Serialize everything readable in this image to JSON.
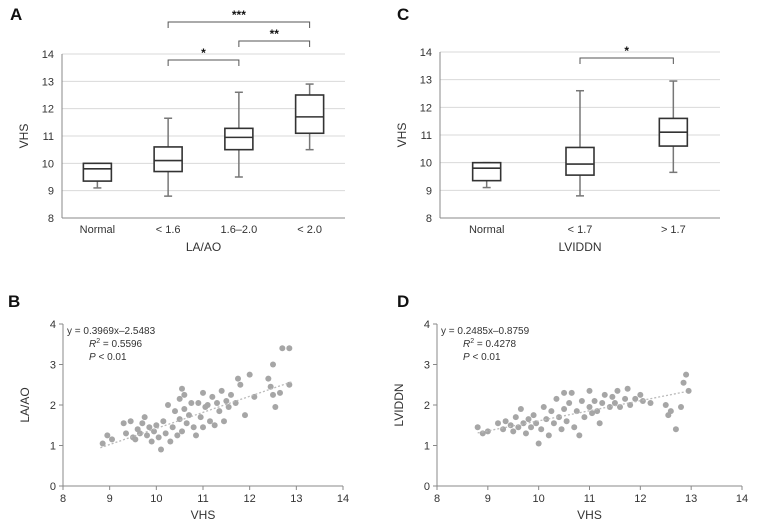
{
  "chart_data": [
    {
      "panel": "A",
      "type": "box",
      "ylabel": "VHS",
      "xlabel": "LA/AO",
      "ylim": [
        8,
        14
      ],
      "yticks": [
        8,
        9,
        10,
        11,
        12,
        13,
        14
      ],
      "categories": [
        "Normal",
        "< 1.6",
        "1.6–2.0",
        "< 2.0"
      ],
      "boxes": [
        {
          "min": 9.1,
          "q1": 9.35,
          "median": 9.8,
          "q3": 10.0,
          "max": 10.0
        },
        {
          "min": 8.8,
          "q1": 9.7,
          "median": 10.1,
          "q3": 10.6,
          "max": 11.65
        },
        {
          "min": 9.5,
          "q1": 10.5,
          "median": 10.95,
          "q3": 11.28,
          "max": 12.6
        },
        {
          "min": 10.5,
          "q1": 11.1,
          "median": 11.7,
          "q3": 12.5,
          "max": 12.9
        }
      ],
      "significance": [
        {
          "from": 1,
          "to": 2,
          "label": "*",
          "level": 1
        },
        {
          "from": 2,
          "to": 3,
          "label": "**",
          "level": 2
        },
        {
          "from": 1,
          "to": 3,
          "label": "***",
          "level": 3
        }
      ]
    },
    {
      "panel": "C",
      "type": "box",
      "ylabel": "VHS",
      "xlabel": "LVIDDN",
      "ylim": [
        8,
        14
      ],
      "yticks": [
        8,
        9,
        10,
        11,
        12,
        13,
        14
      ],
      "categories": [
        "Normal",
        "< 1.7",
        "> 1.7"
      ],
      "boxes": [
        {
          "min": 9.1,
          "q1": 9.35,
          "median": 9.8,
          "q3": 10.0,
          "max": 10.0
        },
        {
          "min": 8.8,
          "q1": 9.55,
          "median": 9.95,
          "q3": 10.55,
          "max": 12.6
        },
        {
          "min": 9.65,
          "q1": 10.6,
          "median": 11.1,
          "q3": 11.6,
          "max": 12.95
        }
      ],
      "significance": [
        {
          "from": 1,
          "to": 2,
          "label": "*",
          "level": 1
        }
      ]
    },
    {
      "panel": "B",
      "type": "scatter",
      "xlabel": "VHS",
      "ylabel": "LA/AO",
      "xlim": [
        8,
        14
      ],
      "ylim": [
        0,
        4
      ],
      "xticks": [
        8,
        9,
        10,
        11,
        12,
        13,
        14
      ],
      "yticks": [
        0,
        1,
        2,
        3,
        4
      ],
      "equation": "y = 0.3969x–2.5483",
      "r2_value": "= 0.5596",
      "p_value": "< 0.01",
      "trend": {
        "slope": 0.3969,
        "intercept": -2.5483,
        "x_from": 8.8,
        "x_to": 12.9
      },
      "points": [
        [
          8.85,
          1.05
        ],
        [
          8.95,
          1.25
        ],
        [
          9.05,
          1.15
        ],
        [
          9.3,
          1.55
        ],
        [
          9.35,
          1.3
        ],
        [
          9.45,
          1.6
        ],
        [
          9.5,
          1.2
        ],
        [
          9.55,
          1.15
        ],
        [
          9.6,
          1.4
        ],
        [
          9.65,
          1.3
        ],
        [
          9.7,
          1.55
        ],
        [
          9.75,
          1.7
        ],
        [
          9.8,
          1.25
        ],
        [
          9.85,
          1.45
        ],
        [
          9.9,
          1.1
        ],
        [
          9.95,
          1.35
        ],
        [
          10.0,
          1.5
        ],
        [
          10.05,
          1.2
        ],
        [
          10.1,
          0.9
        ],
        [
          10.15,
          1.6
        ],
        [
          10.2,
          1.3
        ],
        [
          10.25,
          2.0
        ],
        [
          10.3,
          1.1
        ],
        [
          10.35,
          1.45
        ],
        [
          10.4,
          1.85
        ],
        [
          10.45,
          1.25
        ],
        [
          10.5,
          2.15
        ],
        [
          10.5,
          1.65
        ],
        [
          10.55,
          2.4
        ],
        [
          10.55,
          1.35
        ],
        [
          10.6,
          1.9
        ],
        [
          10.6,
          2.25
        ],
        [
          10.65,
          1.55
        ],
        [
          10.7,
          1.75
        ],
        [
          10.75,
          2.05
        ],
        [
          10.8,
          1.45
        ],
        [
          10.85,
          1.25
        ],
        [
          10.9,
          2.05
        ],
        [
          10.95,
          1.7
        ],
        [
          11.0,
          2.3
        ],
        [
          11.0,
          1.45
        ],
        [
          11.05,
          1.95
        ],
        [
          11.1,
          2.0
        ],
        [
          11.15,
          1.6
        ],
        [
          11.2,
          2.2
        ],
        [
          11.25,
          1.5
        ],
        [
          11.3,
          2.05
        ],
        [
          11.35,
          1.85
        ],
        [
          11.4,
          2.35
        ],
        [
          11.45,
          1.6
        ],
        [
          11.5,
          2.1
        ],
        [
          11.55,
          1.95
        ],
        [
          11.6,
          2.25
        ],
        [
          11.7,
          2.05
        ],
        [
          11.75,
          2.65
        ],
        [
          11.8,
          2.5
        ],
        [
          11.9,
          1.75
        ],
        [
          12.0,
          2.75
        ],
        [
          12.1,
          2.2
        ],
        [
          12.4,
          2.65
        ],
        [
          12.45,
          2.45
        ],
        [
          12.5,
          2.25
        ],
        [
          12.5,
          3.0
        ],
        [
          12.55,
          1.95
        ],
        [
          12.65,
          2.3
        ],
        [
          12.7,
          3.4
        ],
        [
          12.85,
          3.4
        ],
        [
          12.85,
          2.5
        ]
      ]
    },
    {
      "panel": "D",
      "type": "scatter",
      "xlabel": "VHS",
      "ylabel": "LVIDDN",
      "xlim": [
        8,
        14
      ],
      "ylim": [
        0,
        4
      ],
      "xticks": [
        8,
        9,
        10,
        11,
        12,
        13,
        14
      ],
      "yticks": [
        0,
        1,
        2,
        3,
        4
      ],
      "equation": "y = 0.2485x–0.8759",
      "r2_value": "= 0.4278",
      "p_value": "< 0.01",
      "trend": {
        "slope": 0.2485,
        "intercept": -0.8759,
        "x_from": 8.8,
        "x_to": 12.9
      },
      "points": [
        [
          8.8,
          1.45
        ],
        [
          8.9,
          1.3
        ],
        [
          9.0,
          1.35
        ],
        [
          9.2,
          1.55
        ],
        [
          9.3,
          1.4
        ],
        [
          9.35,
          1.6
        ],
        [
          9.45,
          1.5
        ],
        [
          9.5,
          1.35
        ],
        [
          9.55,
          1.7
        ],
        [
          9.6,
          1.45
        ],
        [
          9.65,
          1.9
        ],
        [
          9.7,
          1.55
        ],
        [
          9.75,
          1.3
        ],
        [
          9.8,
          1.65
        ],
        [
          9.85,
          1.45
        ],
        [
          9.9,
          1.75
        ],
        [
          9.95,
          1.55
        ],
        [
          10.0,
          1.05
        ],
        [
          10.05,
          1.4
        ],
        [
          10.1,
          1.95
        ],
        [
          10.15,
          1.65
        ],
        [
          10.2,
          1.25
        ],
        [
          10.25,
          1.85
        ],
        [
          10.3,
          1.55
        ],
        [
          10.35,
          2.15
        ],
        [
          10.4,
          1.7
        ],
        [
          10.45,
          1.4
        ],
        [
          10.5,
          2.3
        ],
        [
          10.5,
          1.9
        ],
        [
          10.55,
          1.6
        ],
        [
          10.6,
          2.05
        ],
        [
          10.65,
          2.3
        ],
        [
          10.7,
          1.45
        ],
        [
          10.75,
          1.85
        ],
        [
          10.8,
          1.25
        ],
        [
          10.85,
          2.1
        ],
        [
          10.9,
          1.7
        ],
        [
          11.0,
          1.95
        ],
        [
          11.0,
          2.35
        ],
        [
          11.05,
          1.8
        ],
        [
          11.1,
          2.1
        ],
        [
          11.15,
          1.85
        ],
        [
          11.2,
          1.55
        ],
        [
          11.25,
          2.05
        ],
        [
          11.3,
          2.25
        ],
        [
          11.4,
          1.95
        ],
        [
          11.45,
          2.2
        ],
        [
          11.5,
          2.05
        ],
        [
          11.55,
          2.35
        ],
        [
          11.6,
          1.95
        ],
        [
          11.7,
          2.15
        ],
        [
          11.75,
          2.4
        ],
        [
          11.8,
          2.0
        ],
        [
          11.9,
          2.15
        ],
        [
          12.0,
          2.25
        ],
        [
          12.05,
          2.1
        ],
        [
          12.2,
          2.05
        ],
        [
          12.5,
          2.0
        ],
        [
          12.55,
          1.75
        ],
        [
          12.6,
          1.85
        ],
        [
          12.7,
          1.4
        ],
        [
          12.8,
          1.95
        ],
        [
          12.85,
          2.55
        ],
        [
          12.9,
          2.75
        ],
        [
          12.95,
          2.35
        ]
      ]
    }
  ],
  "labels": {
    "panel_a": "A",
    "panel_b": "B",
    "panel_c": "C",
    "panel_d": "D",
    "r2_symbol": "R",
    "r2_sup": "2",
    "p_symbol": "P"
  },
  "colors": {
    "box_stroke": "#333333",
    "whisker": "#777777",
    "axis": "#888888",
    "grid": "#d9d9d9",
    "point": "#a6a6a6",
    "trend": "#bbbbbb"
  }
}
